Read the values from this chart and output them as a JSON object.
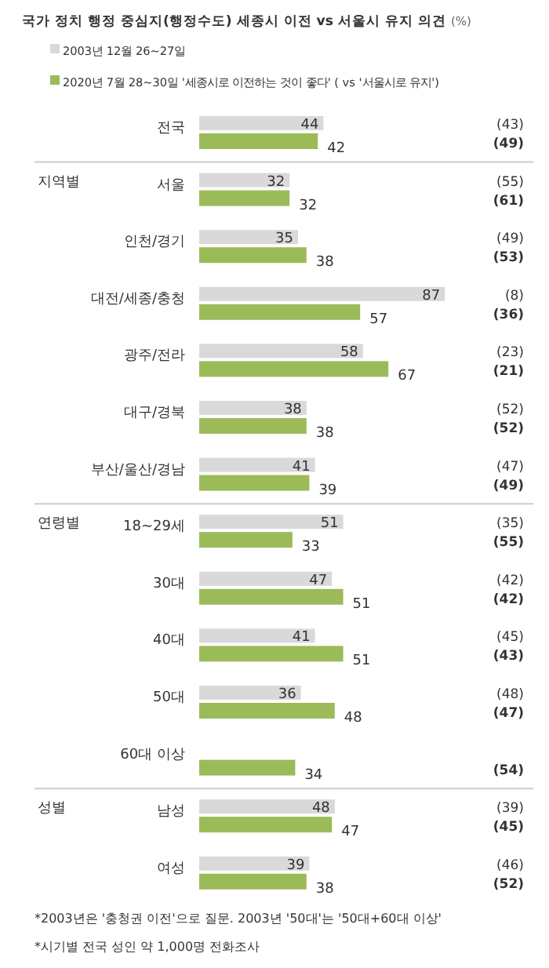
{
  "chart_data": {
    "type": "bar",
    "orientation": "horizontal",
    "title": "국가 정치 행정 중심지(행정수도) 세종시 이전 vs 서울시 유지 의견",
    "subtitle": "(%)",
    "legend": "top",
    "data_labels": true,
    "categories": [
      "전국",
      "서울",
      "인천/경기",
      "대전/세종/충청",
      "광주/전라",
      "대구/경북",
      "부산/울산/경남",
      "18~29세",
      "30대",
      "40대",
      "50대",
      "60대 이상",
      "남성",
      "여성"
    ],
    "series": [
      {
        "name": "2003년 12월 26~27일",
        "color": "#d9d9d9",
        "values": [
          44,
          32,
          35,
          87,
          58,
          38,
          41,
          51,
          47,
          41,
          36,
          null,
          48,
          39
        ]
      },
      {
        "name": "2020년 7월 28~30일 '세종시로 이전하는 것이 좋다'   ( vs '서울시로 유지')",
        "color": "#9bbb59",
        "values": [
          42,
          32,
          38,
          57,
          67,
          38,
          39,
          33,
          51,
          51,
          48,
          34,
          47,
          38
        ]
      }
    ],
    "annotations": [
      "지역별",
      "연령별",
      "성별",
      "(43)",
      "(49)",
      "(55)",
      "(61)",
      "(49)",
      "(53)",
      "(8)",
      "(36)",
      "(23)",
      "(21)",
      "(52)",
      "(52)",
      "(47)",
      "(49)",
      "(35)",
      "(55)",
      "(42)",
      "(42)",
      "(45)",
      "(43)",
      "(48)",
      "(47)",
      "(54)",
      "(39)",
      "(45)",
      "(46)",
      "(52)",
      "*2003년은 '충청권 이전'으로 질문. 2003년 '50대'는 '50대+60대 이상'",
      "*시기별 전국 성인 약 1,000명 전화조사"
    ]
  }
}
